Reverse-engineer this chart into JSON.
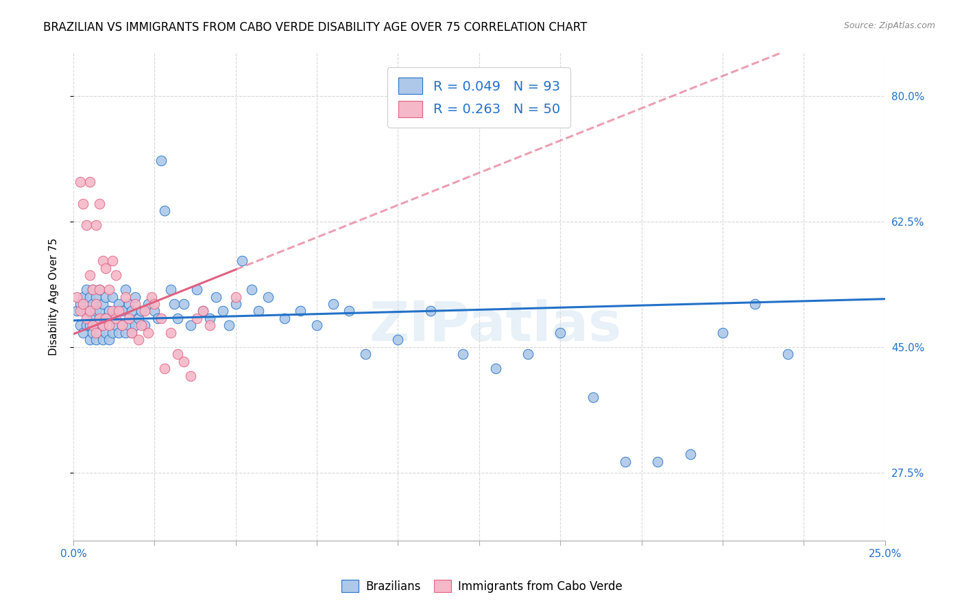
{
  "title": "BRAZILIAN VS IMMIGRANTS FROM CABO VERDE DISABILITY AGE OVER 75 CORRELATION CHART",
  "source": "Source: ZipAtlas.com",
  "ylabel": "Disability Age Over 75",
  "ytick_labels": [
    "80.0%",
    "62.5%",
    "45.0%",
    "27.5%"
  ],
  "ytick_values": [
    0.8,
    0.625,
    0.45,
    0.275
  ],
  "xlim": [
    0.0,
    0.25
  ],
  "ylim": [
    0.18,
    0.86
  ],
  "blue_R": 0.049,
  "blue_N": 93,
  "pink_R": 0.263,
  "pink_N": 50,
  "blue_color": "#adc8e8",
  "pink_color": "#f5b8c8",
  "blue_line_color": "#2271c8",
  "pink_line_color": "#e06080",
  "watermark": "ZIPatlas",
  "blue_scatter_x": [
    0.001,
    0.002,
    0.002,
    0.003,
    0.003,
    0.003,
    0.004,
    0.004,
    0.004,
    0.005,
    0.005,
    0.005,
    0.005,
    0.006,
    0.006,
    0.006,
    0.006,
    0.007,
    0.007,
    0.007,
    0.007,
    0.008,
    0.008,
    0.008,
    0.008,
    0.009,
    0.009,
    0.009,
    0.01,
    0.01,
    0.01,
    0.011,
    0.011,
    0.012,
    0.012,
    0.012,
    0.013,
    0.013,
    0.014,
    0.014,
    0.015,
    0.015,
    0.016,
    0.016,
    0.017,
    0.017,
    0.018,
    0.018,
    0.019,
    0.019,
    0.02,
    0.021,
    0.022,
    0.023,
    0.025,
    0.026,
    0.027,
    0.028,
    0.03,
    0.031,
    0.032,
    0.034,
    0.036,
    0.038,
    0.04,
    0.042,
    0.044,
    0.046,
    0.048,
    0.05,
    0.052,
    0.055,
    0.057,
    0.06,
    0.065,
    0.07,
    0.075,
    0.08,
    0.085,
    0.09,
    0.1,
    0.11,
    0.12,
    0.13,
    0.14,
    0.15,
    0.16,
    0.17,
    0.18,
    0.19,
    0.2,
    0.21,
    0.22
  ],
  "blue_scatter_y": [
    0.5,
    0.48,
    0.51,
    0.47,
    0.5,
    0.52,
    0.48,
    0.5,
    0.53,
    0.46,
    0.48,
    0.5,
    0.52,
    0.47,
    0.49,
    0.51,
    0.53,
    0.46,
    0.48,
    0.5,
    0.52,
    0.47,
    0.49,
    0.5,
    0.53,
    0.46,
    0.48,
    0.51,
    0.47,
    0.49,
    0.52,
    0.46,
    0.5,
    0.47,
    0.49,
    0.52,
    0.48,
    0.5,
    0.47,
    0.51,
    0.48,
    0.5,
    0.47,
    0.53,
    0.48,
    0.51,
    0.47,
    0.5,
    0.48,
    0.52,
    0.49,
    0.5,
    0.48,
    0.51,
    0.5,
    0.49,
    0.71,
    0.64,
    0.53,
    0.51,
    0.49,
    0.51,
    0.48,
    0.53,
    0.5,
    0.49,
    0.52,
    0.5,
    0.48,
    0.51,
    0.57,
    0.53,
    0.5,
    0.52,
    0.49,
    0.5,
    0.48,
    0.51,
    0.5,
    0.44,
    0.46,
    0.5,
    0.44,
    0.42,
    0.44,
    0.47,
    0.38,
    0.29,
    0.29,
    0.3,
    0.47,
    0.51,
    0.44
  ],
  "pink_scatter_x": [
    0.001,
    0.002,
    0.002,
    0.003,
    0.003,
    0.004,
    0.004,
    0.005,
    0.005,
    0.005,
    0.006,
    0.006,
    0.007,
    0.007,
    0.007,
    0.008,
    0.008,
    0.008,
    0.009,
    0.009,
    0.01,
    0.01,
    0.011,
    0.011,
    0.012,
    0.012,
    0.013,
    0.013,
    0.014,
    0.015,
    0.016,
    0.017,
    0.018,
    0.019,
    0.02,
    0.021,
    0.022,
    0.023,
    0.024,
    0.025,
    0.027,
    0.028,
    0.03,
    0.032,
    0.034,
    0.036,
    0.038,
    0.04,
    0.042,
    0.05
  ],
  "pink_scatter_y": [
    0.52,
    0.5,
    0.68,
    0.51,
    0.65,
    0.49,
    0.62,
    0.5,
    0.55,
    0.68,
    0.48,
    0.53,
    0.47,
    0.51,
    0.62,
    0.49,
    0.53,
    0.65,
    0.48,
    0.57,
    0.49,
    0.56,
    0.48,
    0.53,
    0.5,
    0.57,
    0.49,
    0.55,
    0.5,
    0.48,
    0.52,
    0.49,
    0.47,
    0.51,
    0.46,
    0.48,
    0.5,
    0.47,
    0.52,
    0.51,
    0.49,
    0.42,
    0.47,
    0.44,
    0.43,
    0.41,
    0.49,
    0.5,
    0.48,
    0.52
  ],
  "background_color": "#ffffff",
  "grid_color": "#d8d8d8",
  "title_fontsize": 12,
  "axis_label_fontsize": 11,
  "tick_fontsize": 11,
  "legend_fontsize": 14,
  "blue_line_intercept": 0.487,
  "blue_line_slope": 0.12,
  "pink_line_intercept": 0.468,
  "pink_line_slope": 1.8
}
